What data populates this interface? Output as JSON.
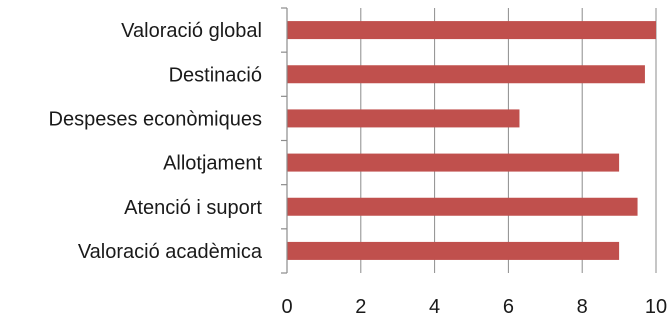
{
  "chart_data": {
    "type": "bar",
    "orientation": "horizontal",
    "categories": [
      "Valoració global",
      "Destinació",
      "Despeses econòmiques",
      "Allotjament",
      "Atenció i suport",
      "Valoració acadèmica"
    ],
    "values": [
      10.0,
      9.7,
      6.3,
      9.0,
      9.5,
      9.0
    ],
    "xlim": [
      0,
      10
    ],
    "xticks": [
      0,
      2,
      4,
      6,
      8,
      10
    ],
    "grid": true,
    "legend": "none",
    "bar_color": "#c0504d",
    "title": "",
    "xlabel": "",
    "ylabel": ""
  }
}
